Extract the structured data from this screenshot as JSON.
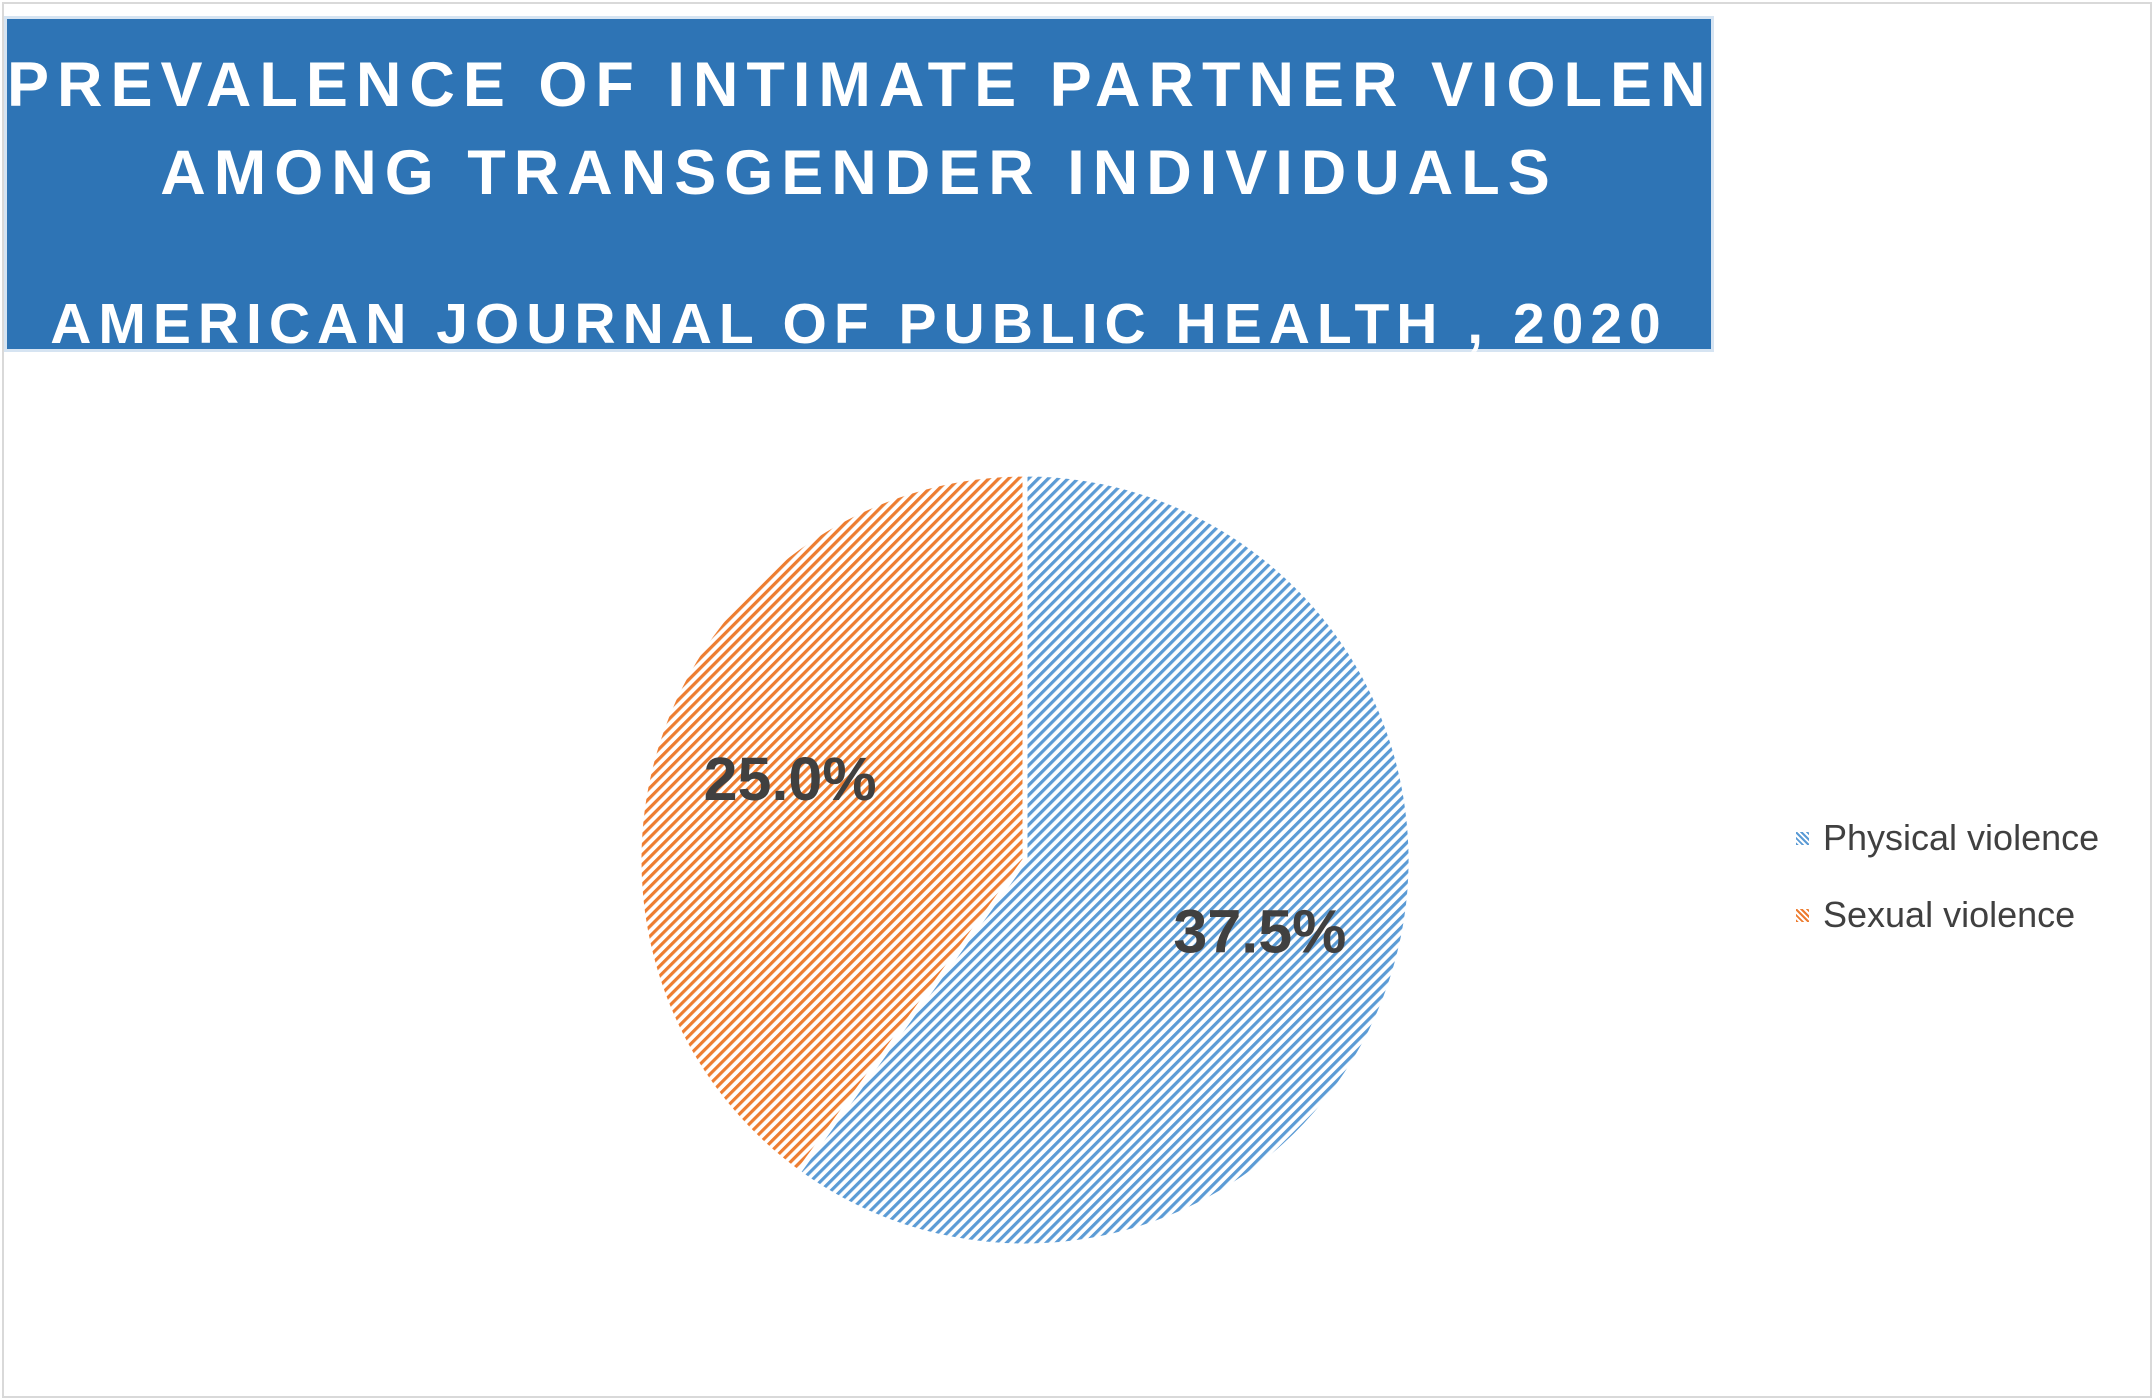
{
  "chart_data": {
    "type": "pie",
    "title_lines": [
      "PREVALENCE OF INTIMATE PARTNER VIOLENCE",
      "AMONG TRANSGENDER INDIVIDUALS"
    ],
    "subtitle": "AMERICAN JOURNAL OF PUBLIC HEALTH , 2020",
    "slices": [
      {
        "name": "Physical violence",
        "value": 37.5,
        "label": "37.5%",
        "color": "#5b9bd5"
      },
      {
        "name": "Sexual violence",
        "value": 25.0,
        "label": "25.0%",
        "color": "#ed7d31"
      }
    ],
    "legend_position": "right"
  }
}
